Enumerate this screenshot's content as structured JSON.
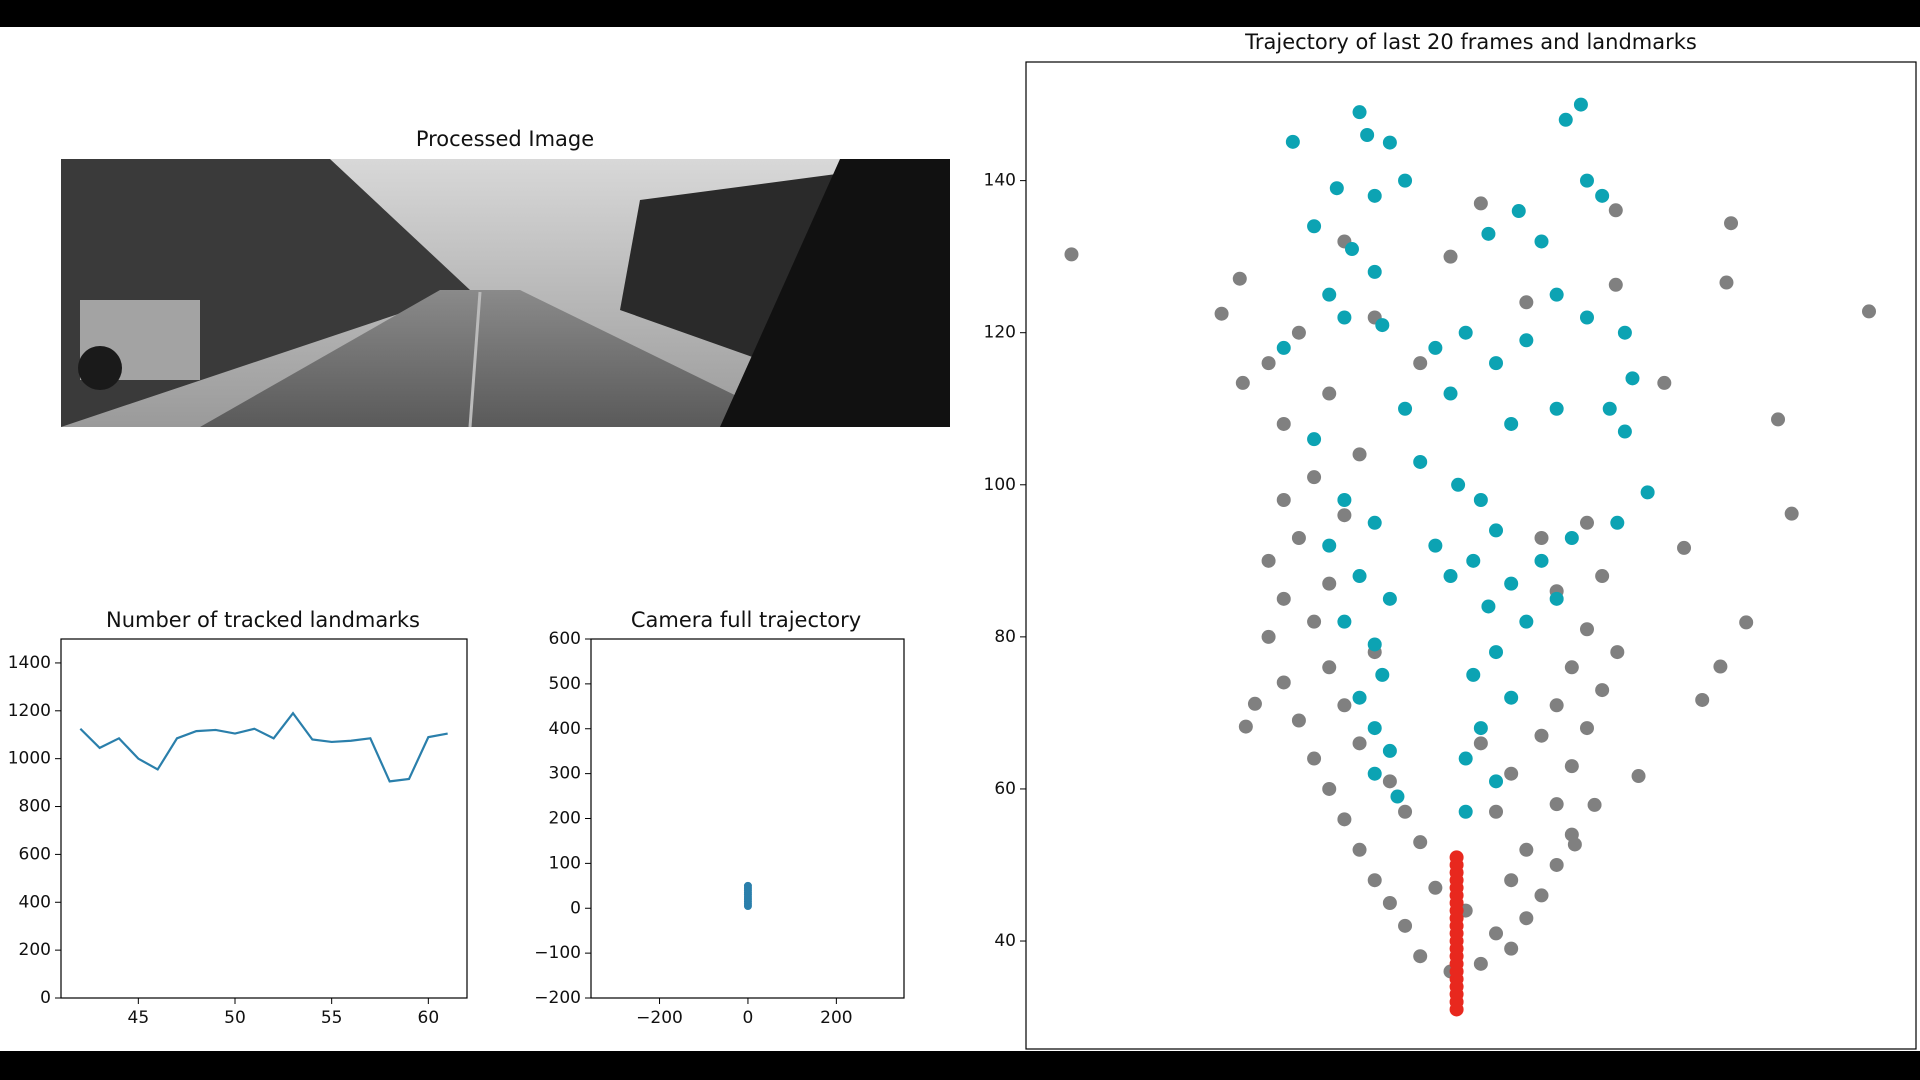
{
  "image_panel": {
    "title": "Processed Image"
  },
  "chart_data": [
    {
      "type": "line",
      "title": "Number of tracked landmarks",
      "x": [
        42,
        43,
        44,
        45,
        46,
        47,
        48,
        49,
        50,
        51,
        52,
        53,
        54,
        55,
        56,
        57,
        58,
        59,
        60,
        61
      ],
      "series": [
        {
          "color": "#2a7fab",
          "values": [
            1125,
            1045,
            1085,
            1000,
            955,
            1085,
            1115,
            1120,
            1105,
            1125,
            1085,
            1190,
            1080,
            1070,
            1075,
            1085,
            905,
            915,
            1090,
            1105
          ]
        }
      ],
      "xlim": [
        41,
        62
      ],
      "ylim": [
        0,
        1500
      ],
      "xticks": [
        45,
        50,
        55,
        60
      ],
      "yticks": [
        0,
        200,
        400,
        600,
        800,
        1000,
        1200,
        1400
      ]
    },
    {
      "type": "scatter",
      "title": "Camera full trajectory",
      "series": [
        {
          "color": "#2a7fab",
          "x": [
            0,
            0,
            0,
            0,
            0,
            0,
            0,
            0,
            0,
            0
          ],
          "y": [
            5,
            10,
            15,
            20,
            25,
            30,
            35,
            40,
            45,
            50
          ]
        }
      ],
      "xlim": [
        -355,
        353
      ],
      "ylim": [
        -200,
        600
      ],
      "xticks": [
        {
          "value": -200,
          "label": "−200"
        },
        0,
        200
      ],
      "yticks": [
        {
          "value": -200,
          "label": "−200"
        },
        {
          "value": -100,
          "label": "−100"
        },
        0,
        100,
        200,
        300,
        400,
        500,
        600
      ]
    },
    {
      "type": "scatter",
      "title": "Trajectory of last 20 frames and landmarks",
      "series": [
        {
          "color": "#808080",
          "x": [
            -26,
            26.6,
            -16.1,
            20.6,
            21.5,
            14.4,
            18.5,
            16.8,
            15.6,
            11.4,
            8.5,
            7.2,
            17.5,
            17.2,
            9.9,
            13.1,
            -14.9,
            -14.7,
            -14.5,
            -13.9,
            9.9,
            -3,
            -1,
            1,
            3,
            -4,
            2,
            4,
            -5,
            0,
            5,
            -6,
            -2,
            3,
            6,
            -7,
            -3,
            4,
            7,
            -8,
            -4,
            2,
            6,
            -9,
            -5,
            3,
            7,
            -10,
            -7,
            1,
            5,
            8,
            -11,
            -8,
            6,
            9,
            -12,
            -9,
            -6,
            7,
            10,
            -13,
            -10,
            8,
            -12,
            -9,
            6,
            9,
            -13,
            -11,
            -8,
            5,
            8,
            -12,
            -10,
            -7,
            -12,
            -9,
            -13,
            -11,
            -6,
            -8,
            -1,
            1,
            4,
            -3
          ],
          "y": [
            130.3,
            122.8,
            122.5,
            108.6,
            96.2,
            91.7,
            81.9,
            76.1,
            71.7,
            61.7,
            57.9,
            52.7,
            134.4,
            126.6,
            136.1,
            113.4,
            127.1,
            113.4,
            68.2,
            71.2,
            126.3,
            38,
            36,
            37,
            39,
            42,
            41,
            43,
            45,
            44,
            46,
            48,
            47,
            48,
            50,
            52,
            53,
            52,
            54,
            56,
            57,
            57,
            58,
            60,
            61,
            62,
            63,
            64,
            66,
            66,
            67,
            68,
            69,
            71,
            71,
            73,
            74,
            76,
            78,
            76,
            78,
            80,
            82,
            81,
            85,
            87,
            86,
            88,
            90,
            93,
            96,
            93,
            95,
            98,
            101,
            104,
            108,
            112,
            116,
            120,
            122,
            132,
            130,
            137,
            124,
            116
          ]
        },
        {
          "color": "#0ca3b3",
          "x": [
            -11.4,
            -7,
            -6.5,
            -5,
            -8.5,
            -6,
            -4,
            -10,
            -7.5,
            -6,
            -9,
            -12,
            -8,
            -5.5,
            -2,
            0,
            2,
            4,
            1.5,
            3.5,
            5,
            8,
            6.6,
            7.6,
            9,
            6,
            8,
            10.5,
            11,
            9.5,
            10.5,
            12,
            10,
            6,
            3,
            -1,
            -4,
            -10,
            -3,
            -0.5,
            -8,
            -6,
            -9,
            -7,
            -5,
            -8,
            -6,
            -5.5,
            -7,
            -6,
            -5,
            -6,
            -4.5,
            1,
            2,
            0.5,
            3,
            1.5,
            4,
            2,
            0.5,
            3,
            1,
            0,
            2,
            0,
            5,
            7,
            6,
            -2,
            -1
          ],
          "y": [
            145.1,
            149,
            146,
            145,
            139,
            138,
            140,
            134,
            131,
            128,
            125,
            118,
            122,
            121,
            118,
            120,
            116,
            119,
            133,
            136,
            132,
            140,
            148,
            150,
            138,
            125,
            122,
            120,
            114,
            110,
            107,
            99,
            95,
            110,
            108,
            112,
            110,
            106,
            103,
            100,
            98,
            95,
            92,
            88,
            85,
            82,
            79,
            75,
            72,
            68,
            65,
            62,
            59,
            98,
            94,
            90,
            87,
            84,
            82,
            78,
            75,
            72,
            68,
            64,
            61,
            57,
            90,
            93,
            85,
            92,
            88
          ]
        },
        {
          "color": "#e8281e",
          "x": [
            -0.6,
            -0.6,
            -0.6,
            -0.6,
            -0.6,
            -0.6,
            -0.6,
            -0.6,
            -0.6,
            -0.6,
            -0.6,
            -0.6,
            -0.6,
            -0.6,
            -0.6,
            -0.6,
            -0.6,
            -0.6,
            -0.6,
            -0.6,
            -0.6
          ],
          "y": [
            31,
            32,
            33,
            34,
            35,
            36,
            37,
            38,
            39,
            40,
            41,
            42,
            43,
            44,
            45,
            46,
            47,
            48,
            49,
            50,
            51
          ]
        }
      ],
      "xlim": [
        -29,
        29.7
      ],
      "ylim": [
        25.8,
        155.6
      ],
      "yticks": [
        40,
        60,
        80,
        100,
        120,
        140
      ]
    }
  ]
}
